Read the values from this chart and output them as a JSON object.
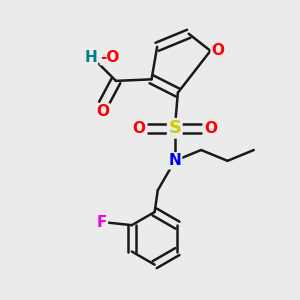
{
  "background_color": "#ebebeb",
  "bond_color": "#1a1a1a",
  "bond_width": 1.8,
  "atom_colors": {
    "O": "#ff0000",
    "N": "#0000ee",
    "S": "#cccc00",
    "F": "#ee00ee",
    "H": "#008080",
    "C": "#1a1a1a"
  },
  "font_size": 11
}
